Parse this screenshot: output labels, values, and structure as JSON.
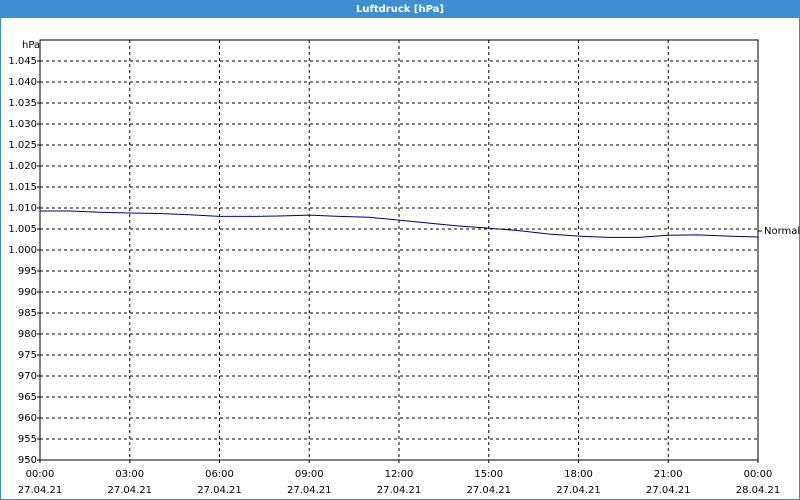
{
  "window_title": "Luftdruck [hPa]",
  "chart_data": {
    "type": "line",
    "y_label": "hPa",
    "annotation": "Normal",
    "x": [
      "2021-04-27T00:00",
      "2021-04-27T01:00",
      "2021-04-27T02:00",
      "2021-04-27T03:00",
      "2021-04-27T04:00",
      "2021-04-27T05:00",
      "2021-04-27T06:00",
      "2021-04-27T07:00",
      "2021-04-27T08:00",
      "2021-04-27T09:00",
      "2021-04-27T10:00",
      "2021-04-27T11:00",
      "2021-04-27T12:00",
      "2021-04-27T13:00",
      "2021-04-27T14:00",
      "2021-04-27T15:00",
      "2021-04-27T16:00",
      "2021-04-27T17:00",
      "2021-04-27T18:00",
      "2021-04-27T19:00",
      "2021-04-27T20:00",
      "2021-04-27T21:00",
      "2021-04-27T22:00",
      "2021-04-27T23:00",
      "2021-04-28T00:00"
    ],
    "series": [
      {
        "name": "Luftdruck",
        "color": "#00008b",
        "values": [
          1009.3,
          1009.3,
          1009.0,
          1008.8,
          1008.7,
          1008.4,
          1008.0,
          1008.0,
          1008.1,
          1008.3,
          1008.0,
          1007.8,
          1007.1,
          1006.4,
          1005.7,
          1005.2,
          1004.6,
          1003.8,
          1003.3,
          1003.0,
          1003.0,
          1003.5,
          1003.6,
          1003.3,
          1003.1
        ]
      }
    ],
    "xlim": [
      "2021-04-27T00:00",
      "2021-04-28T00:00"
    ],
    "xticks": [
      {
        "value": "2021-04-27T00:00",
        "label": "00:00",
        "date": "27.04.21"
      },
      {
        "value": "2021-04-27T03:00",
        "label": "03:00",
        "date": "27.04.21"
      },
      {
        "value": "2021-04-27T06:00",
        "label": "06:00",
        "date": "27.04.21"
      },
      {
        "value": "2021-04-27T09:00",
        "label": "09:00",
        "date": "27.04.21"
      },
      {
        "value": "2021-04-27T12:00",
        "label": "12:00",
        "date": "27.04.21"
      },
      {
        "value": "2021-04-27T15:00",
        "label": "15:00",
        "date": "27.04.21"
      },
      {
        "value": "2021-04-27T18:00",
        "label": "18:00",
        "date": "27.04.21"
      },
      {
        "value": "2021-04-27T21:00",
        "label": "21:00",
        "date": "27.04.21"
      },
      {
        "value": "2021-04-28T00:00",
        "label": "00:00",
        "date": "28.04.21"
      }
    ],
    "ylim": [
      950,
      1050
    ],
    "yticks": [
      950,
      955,
      960,
      965,
      970,
      975,
      980,
      985,
      990,
      995,
      {
        "value": 1000,
        "label": "1.000"
      },
      {
        "value": 1005,
        "label": "1.005"
      },
      {
        "value": 1010,
        "label": "1.010"
      },
      {
        "value": 1015,
        "label": "1.015"
      },
      {
        "value": 1020,
        "label": "1.020"
      },
      {
        "value": 1025,
        "label": "1.025"
      },
      {
        "value": 1030,
        "label": "1.030"
      },
      {
        "value": 1035,
        "label": "1.035"
      },
      {
        "value": 1040,
        "label": "1.040"
      },
      {
        "value": 1045,
        "label": "1.045"
      }
    ],
    "grid": true
  }
}
